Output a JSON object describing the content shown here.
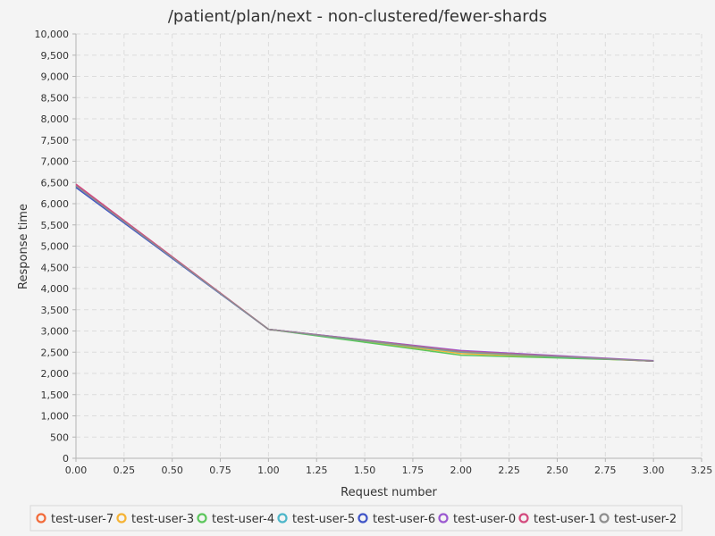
{
  "chart_data": {
    "type": "line",
    "title": "/patient/plan/next - non-clustered/fewer-shards",
    "xlabel": "Request number",
    "ylabel": "Response time",
    "xlim": [
      0,
      3.25
    ],
    "ylim": [
      0,
      10000
    ],
    "x_ticks": [
      "0.00",
      "0.25",
      "0.50",
      "0.75",
      "1.00",
      "1.25",
      "1.50",
      "1.75",
      "2.00",
      "2.25",
      "2.50",
      "2.75",
      "3.00",
      "3.25"
    ],
    "y_ticks": [
      "0",
      "500",
      "1,000",
      "1,500",
      "2,000",
      "2,500",
      "3,000",
      "3,500",
      "4,000",
      "4,500",
      "5,000",
      "5,500",
      "6,000",
      "6,500",
      "7,000",
      "7,500",
      "8,000",
      "8,500",
      "9,000",
      "9,500",
      "10,000"
    ],
    "grid": true,
    "legend_position": "bottom",
    "x": [
      0,
      1,
      2,
      3
    ],
    "series": [
      {
        "name": "test-user-7",
        "color": "#f26b3a",
        "values": [
          6430,
          3040,
          2500,
          2290
        ]
      },
      {
        "name": "test-user-3",
        "color": "#f5b335",
        "values": [
          6440,
          3040,
          2470,
          2290
        ]
      },
      {
        "name": "test-user-4",
        "color": "#5cc65c",
        "values": [
          6420,
          3040,
          2430,
          2300
        ]
      },
      {
        "name": "test-user-5",
        "color": "#4db6c9",
        "values": [
          6400,
          3040,
          2500,
          2290
        ]
      },
      {
        "name": "test-user-6",
        "color": "#4055c7",
        "values": [
          6380,
          3040,
          2530,
          2290
        ]
      },
      {
        "name": "test-user-0",
        "color": "#9b59d0",
        "values": [
          6440,
          3040,
          2540,
          2300
        ]
      },
      {
        "name": "test-user-1",
        "color": "#d34a7e",
        "values": [
          6460,
          3040,
          2520,
          2290
        ]
      },
      {
        "name": "test-user-2",
        "color": "#8e8e8e",
        "values": [
          6420,
          3040,
          2510,
          2290
        ]
      }
    ]
  }
}
